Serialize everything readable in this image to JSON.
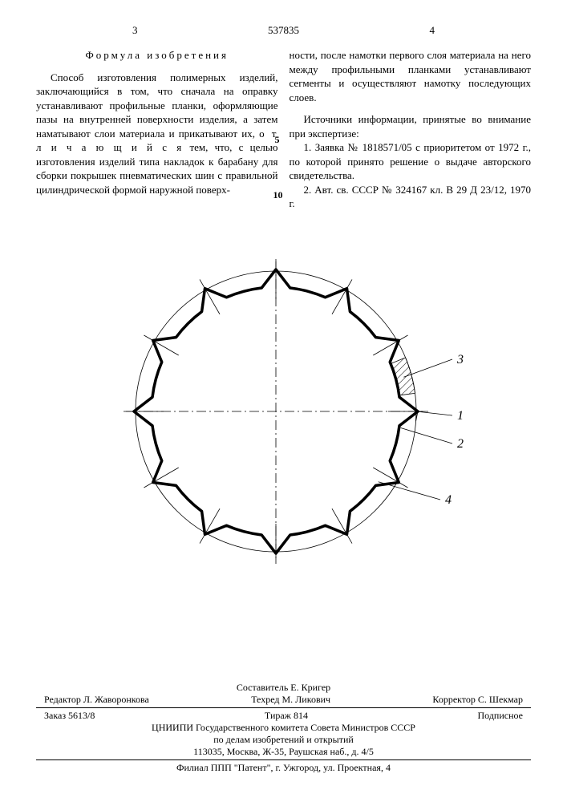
{
  "header": {
    "left_col_num": "3",
    "patent_number": "537835",
    "right_col_num": "4"
  },
  "left_column": {
    "formula_title": "Формула изобретения",
    "text_before_spaced1": "Способ изготовления полимерных изделий, заключающийся в том, что сначала на оправку устанавливают профильные планки, оформляющие пазы на внутренней поверхности изделия, а затем наматывают слои материала и прикатывают их, ",
    "spaced1": "о т л и ч а ю щ и й с я",
    "text_after_spaced1": " тем, что, с целью изготовления изделий типа накладок к барабану для сборки покрышек пневматических шин с правильной цилиндрической формой наружной поверх-",
    "margin_5": "5",
    "margin_10": "10"
  },
  "right_column": {
    "para1": "ности, после намотки первого слоя материала на него между профильными планками устанавливают сегменты и осуществляют намотку последующих слоев.",
    "sources_title": "Источники информации, принятые во внимание при экспертизе:",
    "source1": "1. Заявка № 1818571/05 с приоритетом от 1972 г., по которой принято решение о выдаче авторского свидетельства.",
    "source2": "2. Авт. св. СССР № 324167 кл. В 29 Д 23/12, 1970 г."
  },
  "figure": {
    "outer_radius": 175,
    "inner_radius": 155,
    "num_teeth": 12,
    "tooth_height": 22,
    "labels": {
      "l1": "1",
      "l2": "2",
      "l3": "3",
      "l4": "4"
    },
    "stroke": "#000000",
    "thick_stroke_w": 3.5,
    "thin_stroke_w": 0.8
  },
  "footer": {
    "compiler": "Составитель Е. Кригер",
    "row1_left": "Редактор Л. Жаворонкова",
    "row1_mid": "Техред М. Ликович",
    "row1_right": "Корректор С. Шекмар",
    "row2_left": "Заказ 5613/8",
    "row2_mid": "Тираж 814",
    "row2_right": "Подписное",
    "org1": "ЦНИИПИ Государственного комитета Совета Министров СССР",
    "org2": "по делам изобретений и открытий",
    "addr1": "113035, Москва, Ж-35, Раушская наб., д. 4/5",
    "addr2": "Филиал ППП \"Патент\", г. Ужгород, ул. Проектная, 4"
  }
}
